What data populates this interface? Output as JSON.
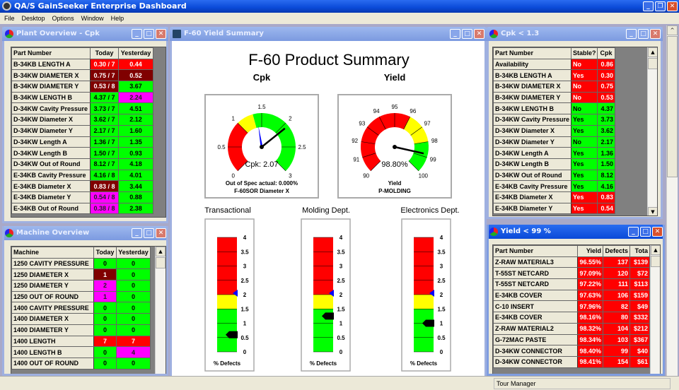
{
  "app": {
    "title": "QA/S GainSeeker Enterprise Dashboard",
    "menu": [
      "File",
      "Desktop",
      "Options",
      "Window",
      "Help"
    ]
  },
  "colors": {
    "r": "#ff0000",
    "m": "#800000",
    "g": "#00ff00",
    "p": "#ff00ff",
    "y": "#ffff00"
  },
  "plant": {
    "title": "Plant Overview - Cpk",
    "headers": [
      "Part Number",
      "Today",
      "Yesterday"
    ],
    "rows": [
      [
        "B-34KB LENGTH A",
        "0.30 / 7",
        "r",
        "0.44",
        "r"
      ],
      [
        "B-34KW DIAMETER X",
        "0.75 / 7",
        "m",
        "0.52",
        "m"
      ],
      [
        "B-34KW DIAMETER Y",
        "0.53 / 8",
        "m",
        "3.67",
        "g"
      ],
      [
        "B-34KW LENGTH B",
        "4.37 / 7",
        "g",
        "2.24",
        "p"
      ],
      [
        "D-34KW Cavity Pressure",
        "3.73 / 7",
        "g",
        "4.51",
        "g"
      ],
      [
        "D-34KW Diameter X",
        "3.62 / 7",
        "g",
        "2.12",
        "g"
      ],
      [
        "D-34KW Diameter Y",
        "2.17 / 7",
        "g",
        "1.60",
        "g"
      ],
      [
        "D-34KW Length A",
        "1.36 / 7",
        "g",
        "1.35",
        "g"
      ],
      [
        "D-34KW Length B",
        "1.50 / 7",
        "g",
        "0.93",
        "g"
      ],
      [
        "D-34KW Out of Round",
        "8.12 / 7",
        "g",
        "4.18",
        "g"
      ],
      [
        "E-34KB Cavity Pressure",
        "4.16 / 8",
        "g",
        "4.01",
        "g"
      ],
      [
        "E-34KB Diameter X",
        "0.83 / 8",
        "m",
        "3.44",
        "g"
      ],
      [
        "E-34KB Diameter Y",
        "0.54 / 8",
        "p",
        "0.88",
        "g"
      ],
      [
        "E-34KB Out of Round",
        "0.38 / 8",
        "p",
        "2.38",
        "g"
      ]
    ]
  },
  "machine": {
    "title": "Machine Overview",
    "headers": [
      "Machine",
      "Today",
      "Yesterday"
    ],
    "rows": [
      [
        "1250 CAVITY PRESSURE",
        "0",
        "g",
        "0",
        "g"
      ],
      [
        "1250 DIAMETER X",
        "1",
        "m",
        "0",
        "g"
      ],
      [
        "1250 DIAMETER Y",
        "2",
        "p",
        "0",
        "g"
      ],
      [
        "1250 OUT OF ROUND",
        "1",
        "p",
        "0",
        "g"
      ],
      [
        "1400 CAVITY PRESSURE",
        "0",
        "g",
        "0",
        "g"
      ],
      [
        "1400 DIAMETER X",
        "0",
        "g",
        "0",
        "g"
      ],
      [
        "1400 DIAMETER Y",
        "0",
        "g",
        "0",
        "g"
      ],
      [
        "1400 LENGTH",
        "7",
        "r",
        "7",
        "r"
      ],
      [
        "1400 LENGTH B",
        "0",
        "g",
        "4",
        "p"
      ],
      [
        "1400 OUT OF ROUND",
        "0",
        "g",
        "0",
        "g"
      ]
    ]
  },
  "cpk": {
    "title": "Cpk < 1.3",
    "headers": [
      "Part Number",
      "Stable?",
      "Cpk"
    ],
    "rows": [
      [
        "Availability",
        "No",
        "r",
        "0.86",
        "r"
      ],
      [
        "B-34KB LENGTH A",
        "Yes",
        "r",
        "0.30",
        "r"
      ],
      [
        "B-34KW DIAMETER X",
        "No",
        "r",
        "0.75",
        "r"
      ],
      [
        "B-34KW DIAMETER Y",
        "No",
        "r",
        "0.53",
        "r"
      ],
      [
        "B-34KW LENGTH B",
        "No",
        "g",
        "4.37",
        "g"
      ],
      [
        "D-34KW Cavity Pressure",
        "Yes",
        "g",
        "3.73",
        "g"
      ],
      [
        "D-34KW Diameter X",
        "Yes",
        "g",
        "3.62",
        "g"
      ],
      [
        "D-34KW Diameter Y",
        "No",
        "g",
        "2.17",
        "g"
      ],
      [
        "D-34KW Length A",
        "Yes",
        "g",
        "1.36",
        "g"
      ],
      [
        "D-34KW Length B",
        "Yes",
        "g",
        "1.50",
        "g"
      ],
      [
        "D-34KW Out of Round",
        "Yes",
        "g",
        "8.12",
        "g"
      ],
      [
        "E-34KB Cavity Pressure",
        "Yes",
        "g",
        "4.16",
        "g"
      ],
      [
        "E-34KB Diameter X",
        "Yes",
        "r",
        "0.83",
        "r"
      ],
      [
        "E-34KB Diameter Y",
        "Yes",
        "r",
        "0.54",
        "r"
      ]
    ]
  },
  "yield": {
    "title": "Yield < 99 %",
    "headers": [
      "Part Number",
      "Yield",
      "Defects",
      "Tota"
    ],
    "rows": [
      [
        "Z-RAW MATERIAL3",
        "96.55%",
        "137",
        "$139"
      ],
      [
        "T-55ST NETCARD",
        "97.09%",
        "120",
        "$72"
      ],
      [
        "T-55ST NETCARD",
        "97.22%",
        "111",
        "$113"
      ],
      [
        "E-34KB COVER",
        "97.63%",
        "106",
        "$159"
      ],
      [
        "C-10 INSERT",
        "97.96%",
        "82",
        "$49"
      ],
      [
        "E-34KB COVER",
        "98.16%",
        "80",
        "$332"
      ],
      [
        "Z-RAW MATERIAL2",
        "98.32%",
        "104",
        "$212"
      ],
      [
        "G-72MAC PASTE",
        "98.34%",
        "103",
        "$367"
      ],
      [
        "D-34KW CONNECTOR",
        "98.40%",
        "99",
        "$40"
      ],
      [
        "D-34KW CONNECTOR",
        "98.41%",
        "154",
        "$61"
      ]
    ]
  },
  "summary": {
    "window_title": "F-60 Yield Summary",
    "heading": "F-60 Product Summary",
    "cpk_gauge": {
      "title": "Cpk",
      "min": 0,
      "max": 3,
      "ticks": [
        "0",
        "0.5",
        "1",
        "1.5",
        "2",
        "2.5",
        "3"
      ],
      "zones": [
        [
          0,
          1,
          "r"
        ],
        [
          1,
          1.33,
          "y"
        ],
        [
          1.33,
          3,
          "g"
        ]
      ],
      "value": 2.07,
      "target": 1.4,
      "readout": "Cpk: 2.07",
      "line1": "Out of Spec actual: 0.000%",
      "line2": "F-60SOR Diameter X"
    },
    "yield_gauge": {
      "title": "Yield",
      "min": 90,
      "max": 100,
      "ticks": [
        "90",
        "91",
        "92",
        "93",
        "94",
        "95",
        "96",
        "97",
        "98",
        "99",
        "100"
      ],
      "zones": [
        [
          90,
          96,
          "r"
        ],
        [
          96,
          98,
          "y"
        ],
        [
          98,
          100,
          "g"
        ]
      ],
      "value": 98.8,
      "target": 98.3,
      "readout": "98.80%",
      "line1": "Yield",
      "line2": "P-MOLDING"
    },
    "bars": [
      {
        "title": "Transactional",
        "value": 0.6,
        "target": 2.05
      },
      {
        "title": "Molding Dept.",
        "value": 1.25,
        "target": 2.05
      },
      {
        "title": "Electronics Dept.",
        "value": 1.0,
        "target": 2.05
      }
    ],
    "bar_scale": {
      "min": 0,
      "max": 4,
      "ticks": [
        "0",
        "0.5",
        "1",
        "1.5",
        "2",
        "2.5",
        "3",
        "3.5",
        "4"
      ],
      "zones": [
        [
          0,
          1.5,
          "g"
        ],
        [
          1.5,
          2,
          "y"
        ],
        [
          2,
          4,
          "r"
        ]
      ],
      "label": "% Defects"
    }
  },
  "status": {
    "pane": "Tour Manager"
  }
}
